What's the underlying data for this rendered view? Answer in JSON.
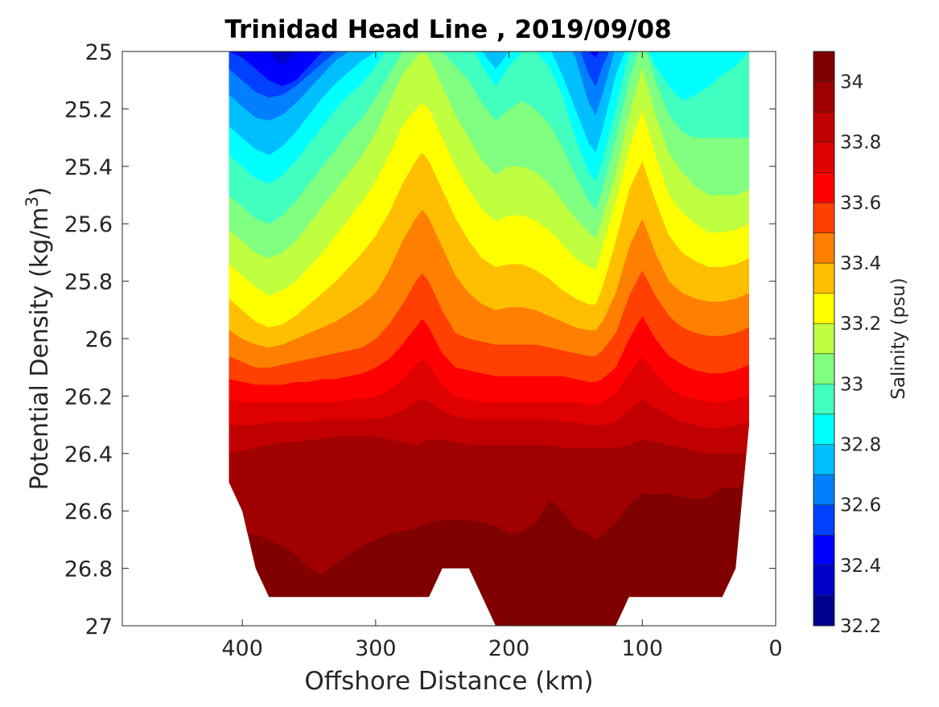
{
  "chart_data": {
    "type": "contour",
    "title": "Trinidad Head Line , 2019/09/08",
    "xlabel": "Offshore Distance (km)",
    "ylabel_main": "Potential Density (kg/m",
    "ylabel_sup": "3",
    "ylabel_close": ")",
    "xlim": [
      490,
      0
    ],
    "x_reversed": true,
    "ylim": [
      25,
      27
    ],
    "y_reversed": true,
    "x_ticks": [
      400,
      300,
      200,
      100,
      0
    ],
    "x_tick_labels": [
      "400",
      "300",
      "200",
      "100",
      "0"
    ],
    "y_ticks": [
      25,
      25.2,
      25.4,
      25.6,
      25.8,
      26,
      26.2,
      26.4,
      26.6,
      26.8,
      27
    ],
    "y_tick_labels": [
      "25",
      "25.2",
      "25.4",
      "25.6",
      "25.8",
      "26",
      "26.2",
      "26.4",
      "26.6",
      "26.8",
      "27"
    ],
    "colorbar": {
      "label": "Salinity (psu)",
      "range": [
        32.2,
        34.1
      ],
      "levels": [
        32.2,
        32.3,
        32.4,
        32.5,
        32.6,
        32.7,
        32.8,
        32.9,
        33.0,
        33.1,
        33.2,
        33.3,
        33.4,
        33.5,
        33.6,
        33.7,
        33.8,
        33.9,
        34.0,
        34.1
      ],
      "tick_values": [
        32.2,
        32.4,
        32.6,
        32.8,
        33,
        33.2,
        33.4,
        33.6,
        33.8,
        34
      ],
      "tick_labels": [
        "32.2",
        "32.4",
        "32.6",
        "32.8",
        "33",
        "33.2",
        "33.4",
        "33.6",
        "33.8",
        "34"
      ],
      "colors": [
        "#00008f",
        "#0000c8",
        "#0000ff",
        "#0040ff",
        "#0080ff",
        "#00bfff",
        "#00ffff",
        "#40ffbf",
        "#80ff80",
        "#bfff40",
        "#ffff00",
        "#ffbf00",
        "#ff8000",
        "#ff4000",
        "#ff0000",
        "#df0000",
        "#c00000",
        "#a00000",
        "#800000"
      ]
    },
    "stations_km": [
      410,
      400,
      390,
      380,
      370,
      360,
      350,
      340,
      330,
      320,
      310,
      300,
      290,
      280,
      270,
      265,
      260,
      250,
      240,
      230,
      220,
      210,
      200,
      190,
      180,
      170,
      160,
      150,
      140,
      135,
      130,
      120,
      110,
      100,
      90,
      80,
      70,
      60,
      50,
      40,
      30,
      20
    ],
    "bottom_density": [
      26.5,
      26.6,
      26.8,
      26.9,
      26.9,
      26.9,
      26.9,
      26.9,
      26.9,
      26.9,
      26.9,
      26.9,
      26.9,
      26.9,
      26.9,
      26.9,
      26.9,
      26.8,
      26.8,
      26.8,
      26.9,
      27,
      27,
      27,
      27,
      27,
      27,
      27,
      27,
      27,
      27,
      27,
      26.9,
      26.9,
      26.9,
      26.9,
      26.9,
      26.9,
      26.9,
      26.9,
      26.8,
      26.3
    ],
    "isohaline_density": {
      "32.4": [
        24.95,
        24.95,
        24.95,
        25.0,
        25.05,
        25.0,
        24.95,
        24.95,
        24.95,
        24.95,
        24.95,
        24.95,
        24.95,
        24.95,
        24.95,
        24.95,
        24.95,
        24.95,
        24.95,
        24.95,
        24.95,
        24.95,
        24.95,
        24.95,
        24.95,
        24.95,
        24.95,
        24.95,
        24.95,
        24.95,
        24.95,
        24.95,
        24.95,
        24.95,
        24.95,
        24.95,
        24.95,
        24.95,
        24.95,
        24.95,
        24.95,
        24.95
      ],
      "32.5": [
        25.0,
        25.02,
        25.06,
        25.1,
        25.12,
        25.1,
        25.05,
        25.0,
        24.97,
        24.95,
        24.95,
        24.95,
        24.95,
        24.95,
        24.95,
        24.95,
        24.95,
        24.95,
        24.95,
        24.95,
        24.95,
        24.95,
        24.95,
        24.95,
        24.95,
        24.95,
        24.95,
        24.95,
        25.0,
        25.02,
        24.98,
        24.95,
        24.95,
        24.95,
        24.95,
        24.95,
        24.95,
        24.95,
        24.95,
        24.95,
        24.95,
        24.95
      ],
      "32.6": [
        25.06,
        25.1,
        25.14,
        25.16,
        25.15,
        25.12,
        25.08,
        25.04,
        25.0,
        24.97,
        24.95,
        24.95,
        24.95,
        24.95,
        24.95,
        24.95,
        24.95,
        24.95,
        24.95,
        24.95,
        24.95,
        24.95,
        24.95,
        24.95,
        24.95,
        24.95,
        24.95,
        24.95,
        25.08,
        25.12,
        25.05,
        24.95,
        24.95,
        24.95,
        24.95,
        24.95,
        24.95,
        24.95,
        24.95,
        24.95,
        24.95,
        24.95
      ],
      "32.7": [
        25.15,
        25.19,
        25.23,
        25.24,
        25.22,
        25.18,
        25.13,
        25.08,
        25.03,
        25.0,
        24.97,
        24.96,
        24.95,
        24.95,
        24.95,
        24.95,
        24.95,
        24.95,
        24.95,
        24.95,
        24.95,
        24.95,
        24.95,
        24.95,
        24.95,
        24.95,
        24.95,
        25.02,
        25.18,
        25.22,
        25.15,
        24.98,
        24.95,
        24.95,
        24.95,
        24.95,
        24.95,
        24.95,
        24.95,
        24.95,
        24.95,
        24.95
      ],
      "32.8": [
        25.26,
        25.3,
        25.34,
        25.36,
        25.33,
        25.28,
        25.22,
        25.16,
        25.11,
        25.07,
        25.03,
        25.0,
        24.97,
        24.95,
        24.95,
        24.95,
        24.95,
        24.95,
        24.95,
        24.95,
        25.0,
        25.06,
        25.0,
        24.96,
        24.95,
        24.98,
        25.08,
        25.2,
        25.32,
        25.35,
        25.27,
        25.08,
        24.96,
        24.95,
        24.95,
        24.95,
        24.95,
        24.95,
        24.95,
        24.95,
        24.95,
        24.95
      ],
      "32.9": [
        25.36,
        25.4,
        25.44,
        25.46,
        25.43,
        25.38,
        25.32,
        25.26,
        25.2,
        25.15,
        25.11,
        25.05,
        24.98,
        24.95,
        24.95,
        24.95,
        24.95,
        24.95,
        24.95,
        24.95,
        25.05,
        25.12,
        25.05,
        25.0,
        25.0,
        25.05,
        25.15,
        25.3,
        25.42,
        25.45,
        25.38,
        25.2,
        25.0,
        24.95,
        25.05,
        25.12,
        25.17,
        25.15,
        25.12,
        25.08,
        25.05,
        25.0
      ],
      "33.0": [
        25.5,
        25.54,
        25.58,
        25.6,
        25.57,
        25.52,
        25.46,
        25.4,
        25.34,
        25.28,
        25.23,
        25.16,
        25.08,
        25.0,
        24.96,
        24.95,
        24.96,
        25.0,
        25.05,
        25.1,
        25.18,
        25.24,
        25.2,
        25.17,
        25.2,
        25.25,
        25.33,
        25.43,
        25.52,
        25.55,
        25.48,
        25.3,
        25.1,
        24.95,
        25.1,
        25.22,
        25.28,
        25.3,
        25.3,
        25.3,
        25.3,
        25.3
      ],
      "33.1": [
        25.62,
        25.66,
        25.7,
        25.72,
        25.7,
        25.66,
        25.6,
        25.54,
        25.48,
        25.42,
        25.36,
        25.28,
        25.18,
        25.08,
        25.02,
        25.0,
        25.02,
        25.12,
        25.22,
        25.3,
        25.38,
        25.43,
        25.4,
        25.4,
        25.42,
        25.46,
        25.52,
        25.58,
        25.63,
        25.65,
        25.58,
        25.42,
        25.22,
        25.05,
        25.22,
        25.35,
        25.42,
        25.47,
        25.5,
        25.5,
        25.5,
        25.48
      ],
      "33.2": [
        25.74,
        25.78,
        25.82,
        25.85,
        25.83,
        25.8,
        25.75,
        25.7,
        25.64,
        25.58,
        25.52,
        25.45,
        25.36,
        25.26,
        25.2,
        25.18,
        25.2,
        25.3,
        25.4,
        25.48,
        25.55,
        25.59,
        25.57,
        25.57,
        25.59,
        25.62,
        25.67,
        25.72,
        25.75,
        25.76,
        25.68,
        25.52,
        25.34,
        25.2,
        25.36,
        25.5,
        25.56,
        25.6,
        25.63,
        25.63,
        25.62,
        25.6
      ],
      "33.3": [
        25.86,
        25.9,
        25.94,
        25.96,
        25.95,
        25.92,
        25.88,
        25.84,
        25.8,
        25.75,
        25.7,
        25.64,
        25.56,
        25.46,
        25.38,
        25.35,
        25.38,
        25.48,
        25.58,
        25.66,
        25.72,
        25.75,
        25.74,
        25.74,
        25.76,
        25.79,
        25.83,
        25.86,
        25.88,
        25.88,
        25.82,
        25.66,
        25.48,
        25.38,
        25.52,
        25.64,
        25.7,
        25.73,
        25.75,
        25.75,
        25.74,
        25.72
      ],
      "33.4": [
        25.97,
        26.0,
        26.02,
        26.03,
        26.02,
        26.0,
        25.98,
        25.96,
        25.94,
        25.91,
        25.88,
        25.84,
        25.76,
        25.66,
        25.58,
        25.55,
        25.58,
        25.68,
        25.78,
        25.84,
        25.88,
        25.9,
        25.89,
        25.89,
        25.9,
        25.92,
        25.94,
        25.96,
        25.97,
        25.97,
        25.94,
        25.84,
        25.68,
        25.58,
        25.7,
        25.8,
        25.84,
        25.86,
        25.87,
        25.87,
        25.86,
        25.84
      ],
      "33.5": [
        26.06,
        26.08,
        26.1,
        26.1,
        26.09,
        26.08,
        26.07,
        26.06,
        26.05,
        26.04,
        26.03,
        26.0,
        25.95,
        25.88,
        25.8,
        25.77,
        25.8,
        25.9,
        25.98,
        26.0,
        26.01,
        26.02,
        26.02,
        26.02,
        26.02,
        26.03,
        26.04,
        26.05,
        26.06,
        26.06,
        26.04,
        25.98,
        25.85,
        25.76,
        25.85,
        25.92,
        25.96,
        25.98,
        25.99,
        25.99,
        25.98,
        25.96
      ],
      "33.6": [
        26.14,
        26.15,
        26.16,
        26.16,
        26.16,
        26.15,
        26.15,
        26.14,
        26.14,
        26.13,
        26.12,
        26.1,
        26.07,
        26.02,
        25.96,
        25.93,
        25.96,
        26.05,
        26.1,
        26.11,
        26.12,
        26.13,
        26.13,
        26.13,
        26.13,
        26.13,
        26.13,
        26.14,
        26.15,
        26.15,
        26.14,
        26.1,
        26.0,
        25.92,
        26.0,
        26.06,
        26.09,
        26.11,
        26.12,
        26.12,
        26.11,
        26.09
      ],
      "33.7": [
        26.21,
        26.22,
        26.22,
        26.22,
        26.22,
        26.22,
        26.22,
        26.22,
        26.22,
        26.21,
        26.21,
        26.2,
        26.18,
        26.14,
        26.09,
        26.07,
        26.09,
        26.16,
        26.2,
        26.21,
        26.22,
        26.22,
        26.22,
        26.22,
        26.22,
        26.22,
        26.22,
        26.22,
        26.23,
        26.23,
        26.22,
        26.19,
        26.12,
        26.06,
        26.12,
        26.17,
        26.2,
        26.21,
        26.22,
        26.22,
        26.21,
        26.2
      ],
      "33.8": [
        26.3,
        26.3,
        26.3,
        26.29,
        26.29,
        26.29,
        26.29,
        26.28,
        26.28,
        26.28,
        26.28,
        26.28,
        26.27,
        26.25,
        26.22,
        26.21,
        26.22,
        26.25,
        26.27,
        26.28,
        26.28,
        26.28,
        26.28,
        26.28,
        26.28,
        26.28,
        26.29,
        26.29,
        26.3,
        26.3,
        26.3,
        26.29,
        26.25,
        26.21,
        26.24,
        26.27,
        26.29,
        26.3,
        26.31,
        26.31,
        26.3,
        26.29
      ],
      "33.9": [
        26.4,
        26.39,
        26.38,
        26.37,
        26.36,
        26.36,
        26.35,
        26.35,
        26.34,
        26.34,
        26.34,
        26.34,
        26.35,
        26.36,
        26.37,
        26.36,
        26.35,
        26.35,
        26.36,
        26.37,
        26.37,
        26.37,
        26.37,
        26.37,
        26.37,
        26.37,
        26.38,
        26.38,
        26.38,
        26.38,
        26.38,
        26.38,
        26.37,
        26.35,
        26.36,
        26.37,
        26.38,
        26.39,
        26.4,
        26.4,
        26.4,
        26.4
      ],
      "34.0": [
        26.65,
        26.68,
        26.68,
        26.7,
        26.72,
        26.75,
        26.8,
        26.82,
        26.78,
        26.75,
        26.72,
        26.7,
        26.68,
        26.67,
        26.66,
        26.65,
        26.64,
        26.63,
        26.63,
        26.63,
        26.64,
        26.65,
        26.68,
        26.67,
        26.64,
        26.56,
        26.6,
        26.66,
        26.68,
        26.7,
        26.68,
        26.64,
        26.58,
        26.54,
        26.54,
        26.54,
        26.55,
        26.56,
        26.55,
        26.52,
        26.52,
        26.5
      ],
      "34.1": [
        26.95,
        26.8,
        26.85,
        26.92,
        26.95,
        26.95,
        26.95,
        26.95,
        26.95,
        26.95,
        26.95,
        26.95,
        26.95,
        26.93,
        26.91,
        26.9,
        26.9,
        26.92,
        26.95,
        26.92,
        26.89,
        26.92,
        26.94,
        26.94,
        26.93,
        26.92,
        26.93,
        26.93,
        26.92,
        26.91,
        26.9,
        26.9,
        26.88,
        26.86,
        26.86,
        26.88,
        26.88,
        26.88,
        26.86,
        26.85,
        26.82,
        26.8
      ]
    }
  }
}
